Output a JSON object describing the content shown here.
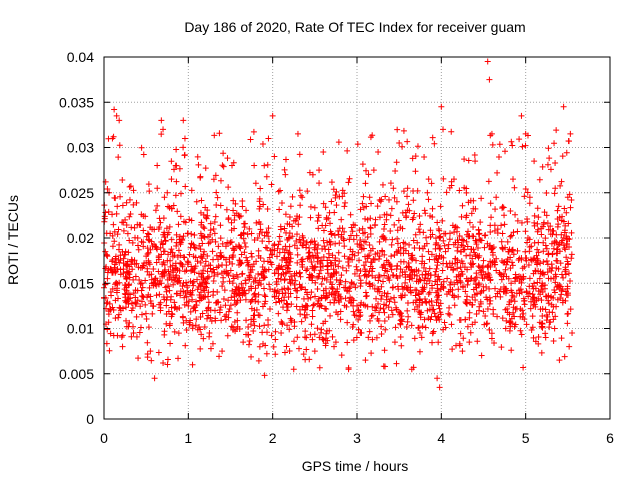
{
  "chart_data": {
    "type": "scatter",
    "title": "Day 186 of 2020, Rate Of TEC Index for receiver guam",
    "xlabel": "GPS time / hours",
    "ylabel": "ROTI / TECUs",
    "xlim": [
      0,
      6
    ],
    "ylim": [
      0,
      0.04
    ],
    "x_ticks": [
      "0",
      "1",
      "2",
      "3",
      "4",
      "5",
      "6"
    ],
    "y_ticks": [
      "0",
      "0.005",
      "0.01",
      "0.015",
      "0.02",
      "0.025",
      "0.03",
      "0.035",
      "0.04"
    ],
    "grid": true,
    "marker": "plus",
    "series": [
      {
        "color": "#ff0000",
        "x_range": [
          0,
          5.55
        ],
        "y_typical_range": [
          0.004,
          0.028
        ],
        "points": [
          [
            0.0,
            0.0145
          ],
          [
            0.02,
            0.0262
          ],
          [
            0.04,
            0.018
          ],
          [
            0.06,
            0.025
          ],
          [
            0.1,
            0.031
          ],
          [
            0.12,
            0.0342
          ],
          [
            0.15,
            0.0335
          ],
          [
            0.18,
            0.033
          ],
          [
            0.2,
            0.012
          ],
          [
            0.22,
            0.008
          ],
          [
            0.25,
            0.022
          ],
          [
            0.3,
            0.016
          ],
          [
            0.35,
            0.0095
          ],
          [
            0.4,
            0.02
          ],
          [
            0.45,
            0.013
          ],
          [
            0.5,
            0.018
          ],
          [
            0.55,
            0.0075
          ],
          [
            0.6,
            0.0045
          ],
          [
            0.65,
            0.021
          ],
          [
            0.68,
            0.033
          ],
          [
            0.7,
            0.032
          ],
          [
            0.75,
            0.025
          ],
          [
            0.8,
            0.0265
          ],
          [
            0.85,
            0.028
          ],
          [
            0.9,
            0.0195
          ],
          [
            0.94,
            0.033
          ],
          [
            0.96,
            0.031
          ],
          [
            1.0,
            0.0125
          ],
          [
            1.05,
            0.006
          ],
          [
            1.1,
            0.024
          ],
          [
            1.15,
            0.018
          ],
          [
            1.2,
            0.0135
          ],
          [
            1.25,
            0.0095
          ],
          [
            1.3,
            0.021
          ],
          [
            1.35,
            0.016
          ],
          [
            1.4,
            0.0075
          ],
          [
            1.45,
            0.0115
          ],
          [
            1.5,
            0.0195
          ],
          [
            1.55,
            0.0225
          ],
          [
            1.6,
            0.0145
          ],
          [
            1.65,
            0.0085
          ],
          [
            1.7,
            0.0175
          ],
          [
            1.75,
            0.0205
          ],
          [
            1.8,
            0.0135
          ],
          [
            1.85,
            0.0235
          ],
          [
            1.9,
            0.028
          ],
          [
            1.95,
            0.031
          ],
          [
            2.0,
            0.0335
          ],
          [
            2.02,
            0.029
          ],
          [
            2.05,
            0.0165
          ],
          [
            2.1,
            0.0095
          ],
          [
            2.15,
            0.027
          ],
          [
            2.2,
            0.0215
          ],
          [
            2.25,
            0.0055
          ],
          [
            2.3,
            0.0315
          ],
          [
            2.35,
            0.0245
          ],
          [
            2.4,
            0.0125
          ],
          [
            2.45,
            0.0195
          ],
          [
            2.5,
            0.0075
          ],
          [
            2.55,
            0.0275
          ],
          [
            2.6,
            0.0295
          ],
          [
            2.65,
            0.0165
          ],
          [
            2.7,
            0.0205
          ],
          [
            2.75,
            0.0085
          ],
          [
            2.8,
            0.0135
          ],
          [
            2.85,
            0.0235
          ],
          [
            2.9,
            0.0055
          ],
          [
            2.95,
            0.0185
          ],
          [
            3.0,
            0.0125
          ],
          [
            3.05,
            0.0095
          ],
          [
            3.1,
            0.0065
          ],
          [
            3.15,
            0.0245
          ],
          [
            3.2,
            0.0275
          ],
          [
            3.25,
            0.0295
          ],
          [
            3.3,
            0.0185
          ],
          [
            3.35,
            0.0135
          ],
          [
            3.4,
            0.0225
          ],
          [
            3.45,
            0.0085
          ],
          [
            3.5,
            0.0305
          ],
          [
            3.55,
            0.0195
          ],
          [
            3.6,
            0.0255
          ],
          [
            3.65,
            0.0055
          ],
          [
            3.7,
            0.0175
          ],
          [
            3.75,
            0.0215
          ],
          [
            3.8,
            0.0145
          ],
          [
            3.85,
            0.0265
          ],
          [
            3.9,
            0.0095
          ],
          [
            3.95,
            0.0045
          ],
          [
            3.98,
            0.0035
          ],
          [
            4.0,
            0.0345
          ],
          [
            4.02,
            0.032
          ],
          [
            4.05,
            0.0185
          ],
          [
            4.1,
            0.0115
          ],
          [
            4.15,
            0.0265
          ],
          [
            4.2,
            0.0195
          ],
          [
            4.25,
            0.0075
          ],
          [
            4.3,
            0.0225
          ],
          [
            4.35,
            0.0155
          ],
          [
            4.4,
            0.0285
          ],
          [
            4.45,
            0.0205
          ],
          [
            4.5,
            0.0175
          ],
          [
            4.55,
            0.0395
          ],
          [
            4.57,
            0.0375
          ],
          [
            4.6,
            0.0315
          ],
          [
            4.65,
            0.0245
          ],
          [
            4.7,
            0.0135
          ],
          [
            4.75,
            0.0215
          ],
          [
            4.8,
            0.0185
          ],
          [
            4.85,
            0.0265
          ],
          [
            4.9,
            0.0155
          ],
          [
            4.95,
            0.0335
          ],
          [
            5.0,
            0.0315
          ],
          [
            5.05,
            0.0245
          ],
          [
            5.1,
            0.0285
          ],
          [
            5.15,
            0.0195
          ],
          [
            5.2,
            0.0105
          ],
          [
            5.25,
            0.0225
          ],
          [
            5.3,
            0.0155
          ],
          [
            5.35,
            0.0255
          ],
          [
            5.4,
            0.0065
          ],
          [
            5.45,
            0.0345
          ],
          [
            5.5,
            0.0245
          ],
          [
            5.53,
            0.0315
          ],
          [
            5.55,
            0.0095
          ]
        ]
      }
    ]
  }
}
